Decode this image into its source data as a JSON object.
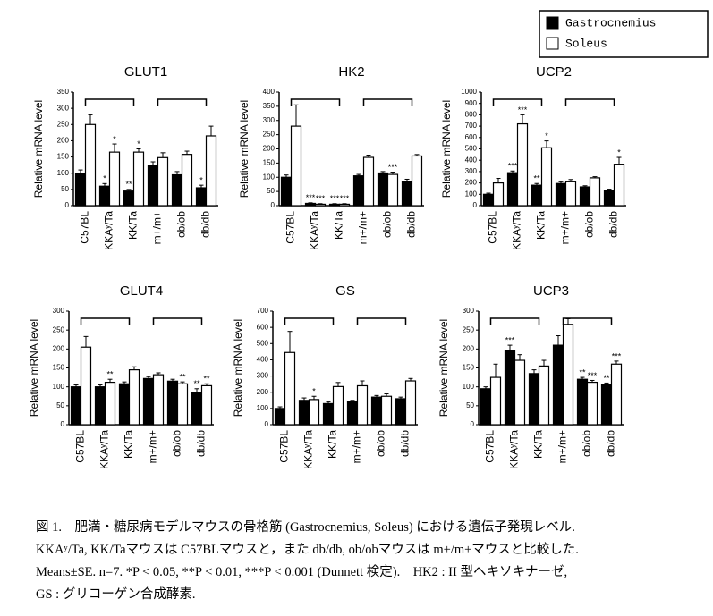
{
  "chart_data": [
    {
      "type": "bar",
      "title": "GLUT1",
      "y_label": "Relative mRNA level",
      "categories": [
        "C57BL",
        "KKAʸ/Ta",
        "KK/Ta",
        "m+/m+",
        "ob/ob",
        "db/db"
      ],
      "ylim": [
        0,
        350
      ],
      "yticks": [
        0,
        50,
        100,
        150,
        200,
        250,
        300,
        350
      ],
      "series": [
        {
          "name": "Gastrocnemius",
          "color": "#000000",
          "values": [
            100,
            60,
            45,
            125,
            95,
            55
          ],
          "errors": [
            10,
            8,
            5,
            10,
            10,
            8
          ],
          "stars": [
            null,
            "*",
            "**",
            null,
            null,
            "*"
          ]
        },
        {
          "name": "Soleus",
          "color": "#ffffff",
          "values": [
            250,
            165,
            165,
            148,
            158,
            215
          ],
          "errors": [
            30,
            25,
            10,
            15,
            10,
            30
          ],
          "stars": [
            null,
            "*",
            "*",
            null,
            null,
            null
          ]
        }
      ]
    },
    {
      "type": "bar",
      "title": "HK2",
      "y_label": "Relative mRNA level",
      "categories": [
        "C57BL",
        "KKAʸ/Ta",
        "KK/Ta",
        "m+/m+",
        "ob/ob",
        "db/db"
      ],
      "ylim": [
        0,
        400
      ],
      "yticks": [
        0,
        50,
        100,
        150,
        200,
        250,
        300,
        350,
        400
      ],
      "series": [
        {
          "name": "Gastrocnemius",
          "color": "#000000",
          "values": [
            100,
            8,
            5,
            105,
            115,
            85
          ],
          "errors": [
            8,
            2,
            2,
            5,
            5,
            8
          ],
          "stars": [
            null,
            "***",
            "***",
            null,
            null,
            null
          ]
        },
        {
          "name": "Soleus",
          "color": "#ffffff",
          "values": [
            280,
            5,
            5,
            170,
            110,
            175
          ],
          "errors": [
            75,
            2,
            2,
            8,
            8,
            5
          ],
          "stars": [
            null,
            "***",
            "***",
            null,
            "***",
            null
          ]
        }
      ]
    },
    {
      "type": "bar",
      "title": "UCP2",
      "y_label": "Relative mRNA level",
      "categories": [
        "C57BL",
        "KKAʸ/Ta",
        "KK/Ta",
        "m+/m+",
        "ob/ob",
        "db/db"
      ],
      "ylim": [
        0,
        1000
      ],
      "yticks": [
        0,
        100,
        200,
        300,
        400,
        500,
        600,
        700,
        800,
        900,
        1000
      ],
      "series": [
        {
          "name": "Gastrocnemius",
          "color": "#000000",
          "values": [
            100,
            290,
            180,
            195,
            165,
            135
          ],
          "errors": [
            10,
            15,
            15,
            15,
            10,
            10
          ],
          "stars": [
            null,
            "***",
            "**",
            null,
            null,
            null
          ]
        },
        {
          "name": "Soleus",
          "color": "#ffffff",
          "values": [
            200,
            720,
            510,
            210,
            245,
            365
          ],
          "errors": [
            40,
            80,
            60,
            20,
            10,
            60
          ],
          "stars": [
            null,
            "***",
            "*",
            null,
            null,
            "*"
          ]
        }
      ]
    },
    {
      "type": "bar",
      "title": "GLUT4",
      "y_label": "Relative mRNA level",
      "categories": [
        "C57BL",
        "KKAʸ/Ta",
        "KK/Ta",
        "m+/m+",
        "ob/ob",
        "db/db"
      ],
      "ylim": [
        0,
        300
      ],
      "yticks": [
        0,
        50,
        100,
        150,
        200,
        250,
        300
      ],
      "series": [
        {
          "name": "Gastrocnemius",
          "color": "#000000",
          "values": [
            100,
            100,
            108,
            122,
            115,
            85
          ],
          "errors": [
            5,
            5,
            5,
            5,
            5,
            10
          ],
          "stars": [
            null,
            null,
            null,
            null,
            null,
            "**"
          ]
        },
        {
          "name": "Soleus",
          "color": "#ffffff",
          "values": [
            205,
            112,
            145,
            132,
            108,
            103
          ],
          "errors": [
            28,
            8,
            8,
            5,
            5,
            5
          ],
          "stars": [
            null,
            "**",
            null,
            null,
            "**",
            "**"
          ]
        }
      ]
    },
    {
      "type": "bar",
      "title": "GS",
      "y_label": "Relative mRNA level",
      "categories": [
        "C57BL",
        "KKAʸ/Ta",
        "KK/Ta",
        "m+/m+",
        "ob/ob",
        "db/db"
      ],
      "ylim": [
        0,
        700
      ],
      "yticks": [
        0,
        100,
        200,
        300,
        400,
        500,
        600,
        700
      ],
      "series": [
        {
          "name": "Gastrocnemius",
          "color": "#000000",
          "values": [
            100,
            150,
            130,
            140,
            170,
            160
          ],
          "errors": [
            10,
            15,
            10,
            10,
            10,
            10
          ],
          "stars": [
            null,
            null,
            null,
            null,
            null,
            null
          ]
        },
        {
          "name": "Soleus",
          "color": "#ffffff",
          "values": [
            445,
            155,
            235,
            240,
            175,
            270
          ],
          "errors": [
            130,
            20,
            25,
            30,
            15,
            15
          ],
          "stars": [
            null,
            "*",
            null,
            null,
            null,
            null
          ]
        }
      ]
    },
    {
      "type": "bar",
      "title": "UCP3",
      "y_label": "Relative mRNA level",
      "categories": [
        "C57BL",
        "KKAʸ/Ta",
        "KK/Ta",
        "m+/m+",
        "ob/ob",
        "db/db"
      ],
      "ylim": [
        0,
        300
      ],
      "yticks": [
        0,
        50,
        100,
        150,
        200,
        250,
        300
      ],
      "series": [
        {
          "name": "Gastrocnemius",
          "color": "#000000",
          "values": [
            95,
            195,
            135,
            210,
            120,
            105
          ],
          "errors": [
            5,
            15,
            10,
            25,
            5,
            5
          ],
          "stars": [
            null,
            "***",
            null,
            null,
            "**",
            "**"
          ]
        },
        {
          "name": "Soleus",
          "color": "#ffffff",
          "values": [
            125,
            170,
            155,
            265,
            112,
            160
          ],
          "errors": [
            35,
            15,
            15,
            15,
            5,
            8
          ],
          "stars": [
            null,
            null,
            null,
            null,
            "***",
            "***"
          ]
        }
      ]
    }
  ],
  "caption": [
    "図 1.　肥満・糖尿病モデルマウスの骨格筋 (Gastrocnemius, Soleus) における遺伝子発現レベル.",
    "KKAʸ/Ta, KK/Taマウスは C57BLマウスと，また db/db, ob/obマウスは m+/m+マウスと比較した.",
    "Means±SE. n=7. *P < 0.05, **P < 0.01, ***P < 0.001 (Dunnett 検定).　HK2 : II 型ヘキソキナーゼ,",
    "GS : グリコーゲン合成酵素."
  ]
}
